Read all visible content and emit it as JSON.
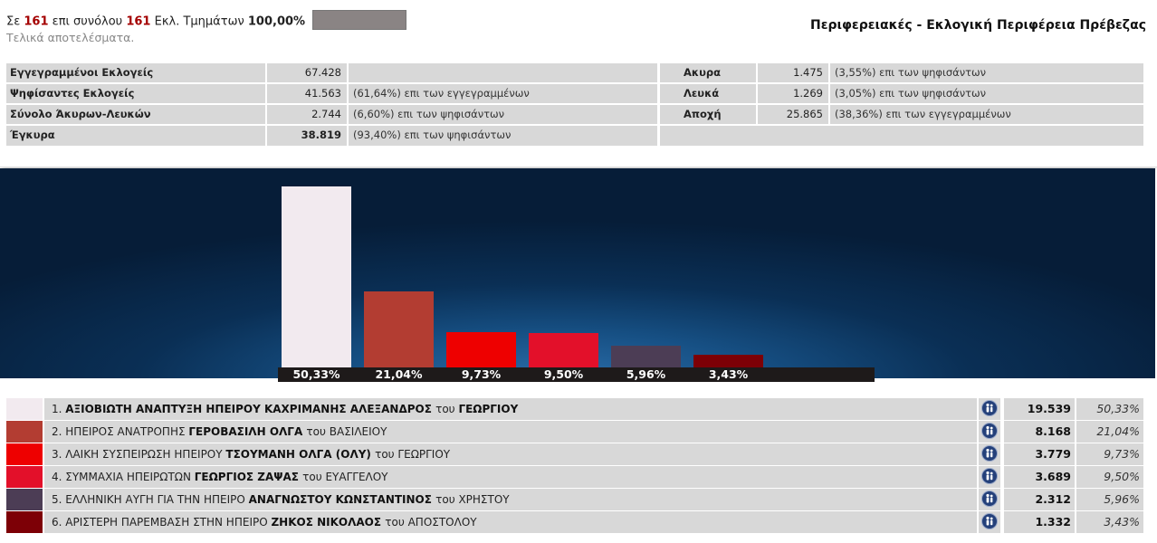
{
  "header": {
    "prefix": "Σε",
    "counted": "161",
    "mid": "επι συνόλου",
    "total": "161",
    "unit": "Εκλ. Τμημάτων",
    "percent": "100,00%",
    "status": "Τελικά αποτελέσματα.",
    "region_title": "Περιφερειακές - Εκλογική Περιφέρεια Πρέβεζας"
  },
  "stats": {
    "registered": {
      "label": "Εγγεγραμμένοι Εκλογείς",
      "value": "67.428",
      "note": ""
    },
    "voted": {
      "label": "Ψηφίσαντες Εκλογείς",
      "value": "41.563",
      "note": "(61,64%) επι των εγγεγραμμένων"
    },
    "invalid_blank": {
      "label": "Σύνολο Άκυρων-Λευκών",
      "value": "2.744",
      "note": "(6,60%) επι των ψηφισάντων"
    },
    "valid": {
      "label": "Έγκυρα",
      "value": "38.819",
      "note": "(93,40%) επι των ψηφισάντων"
    },
    "invalid": {
      "label": "Ακυρα",
      "value": "1.475",
      "note": "(3,55%) επι των ψηφισάντων"
    },
    "blank": {
      "label": "Λευκά",
      "value": "1.269",
      "note": "(3,05%) επι των ψηφισάντων"
    },
    "abstention": {
      "label": "Αποχή",
      "value": "25.865",
      "note": "(38,36%) επι των εγγεγραμμένων"
    }
  },
  "chart_data": {
    "type": "bar",
    "categories": [
      "1",
      "2",
      "3",
      "4",
      "5",
      "6"
    ],
    "values": [
      50.33,
      21.04,
      9.73,
      9.5,
      5.96,
      3.43
    ],
    "labels": [
      "50,33%",
      "21,04%",
      "9,73%",
      "9,50%",
      "5,96%",
      "3,43%"
    ],
    "colors": [
      "#f2eaef",
      "#b33d32",
      "#ee0000",
      "#e3102a",
      "#4c3d55",
      "#7d0006"
    ],
    "ylim": [
      0,
      53
    ]
  },
  "results": [
    {
      "num": "1.",
      "party": "ΑΞΙΟΒΙΩΤΗ ΑΝΑΠΤΥΞΗ ΗΠΕΙΡΟΥ",
      "candidate": "ΚΑΧΡΙΜΑΝΗΣ ΑΛΕΞΑΝΔΡΟΣ",
      "of": "του",
      "father": "ΓΕΩΡΓΙΟΥ",
      "votes": "19.539",
      "pct": "50,33%",
      "color": "#f2eaef",
      "bold_party": true
    },
    {
      "num": "2.",
      "party": "ΗΠΕΙΡΟΣ ΑΝΑΤΡΟΠΗΣ",
      "candidate": "ΓΕΡΟΒΑΣΙΛΗ ΟΛΓΑ",
      "of": "του",
      "father": "ΒΑΣΙΛΕΙΟΥ",
      "votes": "8.168",
      "pct": "21,04%",
      "color": "#b33d32",
      "bold_party": false
    },
    {
      "num": "3.",
      "party": "ΛΑΙΚΗ ΣΥΣΠΕΙΡΩΣΗ ΗΠΕΙΡΟΥ",
      "candidate": "ΤΣΟΥΜΑΝΗ ΟΛΓΑ (ΟΛΥ)",
      "of": "του",
      "father": "ΓΕΩΡΓΙΟΥ",
      "votes": "3.779",
      "pct": "9,73%",
      "color": "#ee0000",
      "bold_party": false
    },
    {
      "num": "4.",
      "party": "ΣΥΜΜΑΧΙΑ ΗΠΕΙΡΩΤΩΝ",
      "candidate": "ΓΕΩΡΓΙΟΣ ΖΑΨΑΣ",
      "of": "του",
      "father": "ΕΥΑΓΓΕΛΟΥ",
      "votes": "3.689",
      "pct": "9,50%",
      "color": "#e3102a",
      "bold_party": false
    },
    {
      "num": "5.",
      "party": "ΕΛΛΗΝΙΚΗ ΑΥΓΗ ΓΙΑ ΤΗΝ ΗΠΕΙΡΟ",
      "candidate": "ΑΝΑΓΝΩΣΤΟΥ ΚΩΝΣΤΑΝΤΙΝΟΣ",
      "of": "του",
      "father": "ΧΡΗΣΤΟΥ",
      "votes": "2.312",
      "pct": "5,96%",
      "color": "#4c3d55",
      "bold_party": false
    },
    {
      "num": "6.",
      "party": "ΑΡΙΣΤΕΡΗ ΠΑΡΕΜΒΑΣΗ ΣΤΗΝ ΗΠΕΙΡΟ",
      "candidate": "ΖΗΚΟΣ ΝΙΚΟΛΑΟΣ",
      "of": "του",
      "father": "ΑΠΟΣΤΟΛΟΥ",
      "votes": "1.332",
      "pct": "3,43%",
      "color": "#7d0006",
      "bold_party": false
    }
  ],
  "icons": {
    "candidate": "person-icon"
  }
}
